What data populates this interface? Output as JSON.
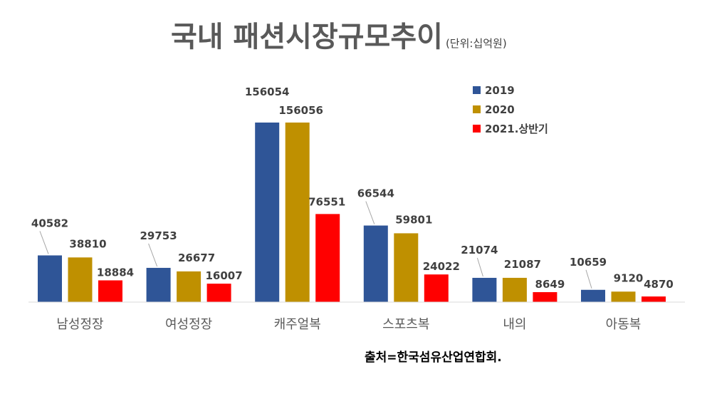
{
  "chart_data": {
    "type": "bar",
    "title": "국내 패션시장규모추이",
    "subtitle": "(단위:십억원)",
    "categories": [
      "남성정장",
      "여성정장",
      "캐주얼복",
      "스포츠복",
      "내의",
      "아동복"
    ],
    "series": [
      {
        "name": "2019",
        "color": "#2f5597",
        "values": [
          40582,
          29753,
          156054,
          66544,
          21074,
          10659
        ]
      },
      {
        "name": "2020",
        "color": "#bf9000",
        "values": [
          38810,
          26677,
          156056,
          59801,
          21087,
          9120
        ]
      },
      {
        "name": "2021.상반기",
        "color": "#ff0000",
        "values": [
          18884,
          16007,
          76551,
          24022,
          8649,
          4870
        ]
      }
    ],
    "ylim": [
      0,
      160000
    ],
    "grid": false,
    "legend": "top-right",
    "source": "출처=한국섬유산업연합회."
  }
}
